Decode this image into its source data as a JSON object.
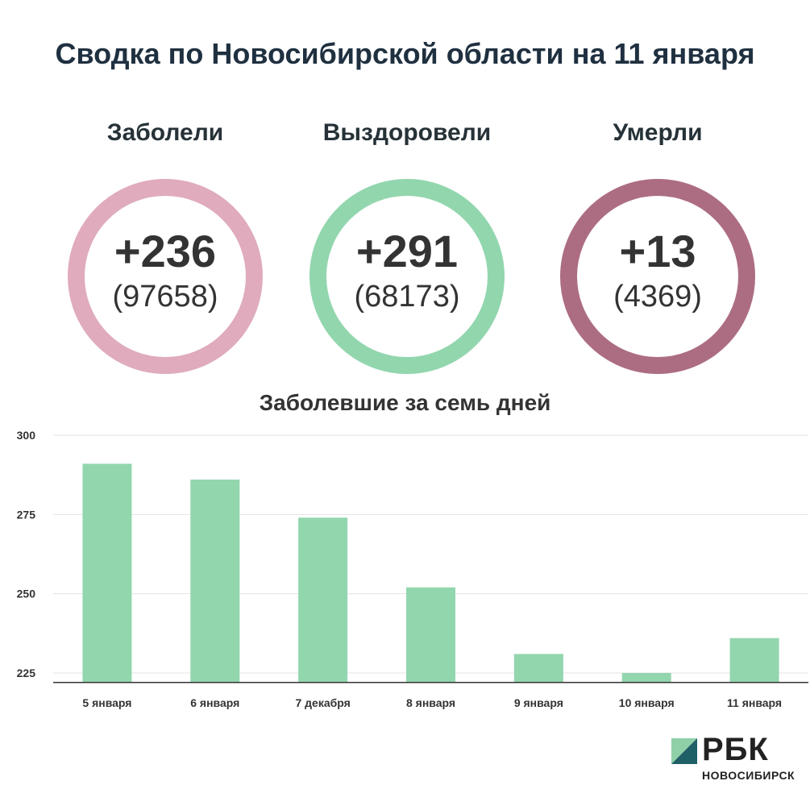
{
  "header": {
    "title": "Сводка по Новосибирской области на 11 января"
  },
  "stats": [
    {
      "label": "Заболели",
      "delta": "+236",
      "total": "(97658)",
      "color": "#dfabbd"
    },
    {
      "label": "Выздоровели",
      "delta": "+291",
      "total": "(68173)",
      "color": "#92d6ae"
    },
    {
      "label": "Умерли",
      "delta": "+13",
      "total": "(4369)",
      "color": "#ac6d83"
    }
  ],
  "chart_data": {
    "type": "bar",
    "title": "Заболевшие за семь дней",
    "categories": [
      "5 января",
      "6 января",
      "7 декабря",
      "8 января",
      "9 января",
      "10 января",
      "11 января"
    ],
    "values": [
      291,
      286,
      274,
      252,
      231,
      225,
      236
    ],
    "ylim": [
      222,
      300
    ],
    "yticks": [
      225,
      250,
      275,
      300
    ],
    "grid": true,
    "bar_color": "#92d6ae"
  },
  "brand": {
    "name": "РБК",
    "subtitle": "НОВОСИБИРСК",
    "mark_colors": [
      "#8fd0a8",
      "#1f5f66"
    ]
  }
}
